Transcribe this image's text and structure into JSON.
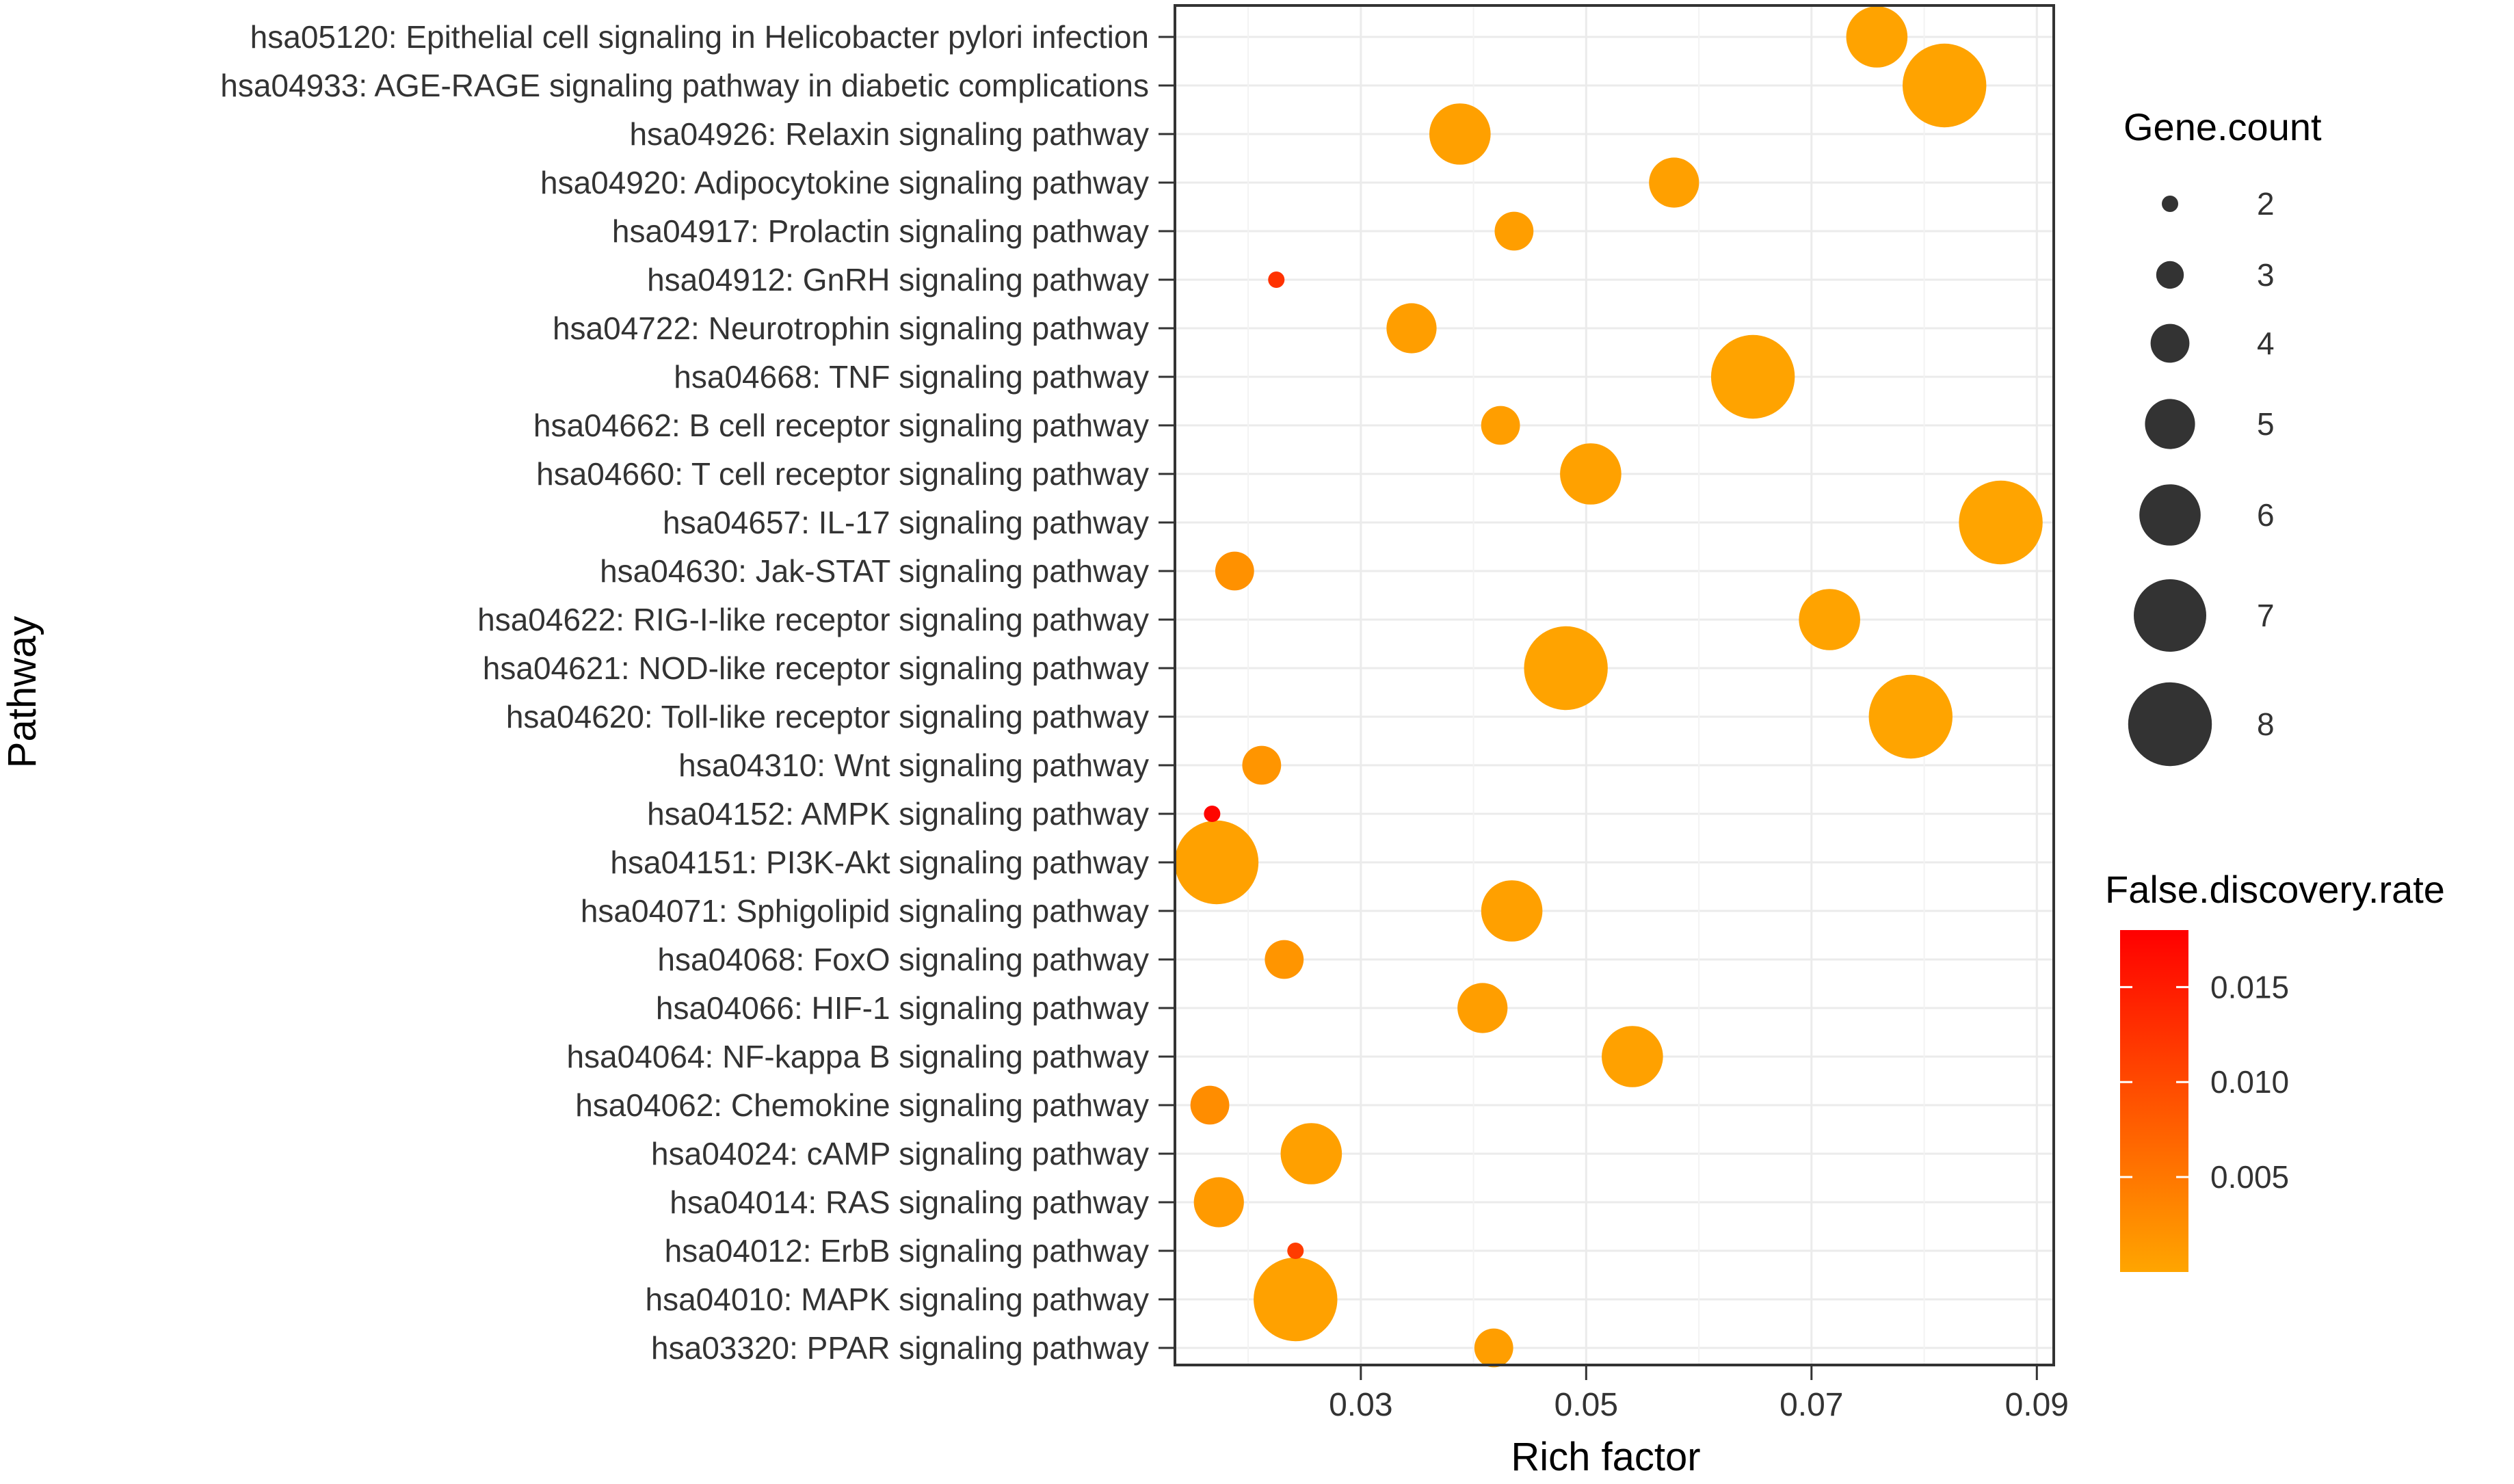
{
  "chart_data": {
    "type": "scatter",
    "subtype": "bubble",
    "xlabel": "Rich factor",
    "ylabel": "Pathway",
    "xlim": [
      0.0135,
      0.0915
    ],
    "xticks": [
      {
        "value": 0.03,
        "label": "0.03"
      },
      {
        "value": 0.05,
        "label": "0.05"
      },
      {
        "value": 0.07,
        "label": "0.07"
      },
      {
        "value": 0.09,
        "label": "0.09"
      }
    ],
    "grid": true,
    "points": [
      {
        "pathway": "hsa05120: Epithelial cell signaling in Helicobacter pylori infection",
        "rich_factor": 0.0758,
        "gene_count": 6,
        "fdr": 0.0002
      },
      {
        "pathway": "hsa04933: AGE-RAGE signaling pathway in diabetic complications",
        "rich_factor": 0.0818,
        "gene_count": 8,
        "fdr": 0.0002
      },
      {
        "pathway": "hsa04926: Relaxin signaling pathway",
        "rich_factor": 0.0388,
        "gene_count": 6,
        "fdr": 0.0006
      },
      {
        "pathway": "hsa04920: Adipocytokine signaling pathway",
        "rich_factor": 0.0578,
        "gene_count": 5,
        "fdr": 0.0006
      },
      {
        "pathway": "hsa04917: Prolactin signaling pathway",
        "rich_factor": 0.0436,
        "gene_count": 4,
        "fdr": 0.0008
      },
      {
        "pathway": "hsa04912: GnRH signaling pathway",
        "rich_factor": 0.0225,
        "gene_count": 2,
        "fdr": 0.0125
      },
      {
        "pathway": "hsa04722: Neurotrophin signaling pathway",
        "rich_factor": 0.0345,
        "gene_count": 5,
        "fdr": 0.0008
      },
      {
        "pathway": "hsa04668: TNF signaling pathway",
        "rich_factor": 0.0648,
        "gene_count": 8,
        "fdr": 0.0002
      },
      {
        "pathway": "hsa04662: B cell receptor signaling pathway",
        "rich_factor": 0.0424,
        "gene_count": 4,
        "fdr": 0.0008
      },
      {
        "pathway": "hsa04660: T cell receptor signaling pathway",
        "rich_factor": 0.0504,
        "gene_count": 6,
        "fdr": 0.0004
      },
      {
        "pathway": "hsa04657: IL-17 signaling pathway",
        "rich_factor": 0.0868,
        "gene_count": 8,
        "fdr": 0.0001
      },
      {
        "pathway": "hsa04630: Jak-STAT signaling pathway",
        "rich_factor": 0.0188,
        "gene_count": 4,
        "fdr": 0.0022
      },
      {
        "pathway": "hsa04622: RIG-I-like receptor signaling pathway",
        "rich_factor": 0.0716,
        "gene_count": 6,
        "fdr": 0.0002
      },
      {
        "pathway": "hsa04621: NOD-like receptor signaling pathway",
        "rich_factor": 0.0482,
        "gene_count": 8,
        "fdr": 0.0002
      },
      {
        "pathway": "hsa04620: Toll-like receptor signaling pathway",
        "rich_factor": 0.0788,
        "gene_count": 8,
        "fdr": 0.0001
      },
      {
        "pathway": "hsa04310: Wnt signaling pathway",
        "rich_factor": 0.0212,
        "gene_count": 4,
        "fdr": 0.0018
      },
      {
        "pathway": "hsa04152: AMPK signaling pathway",
        "rich_factor": 0.0168,
        "gene_count": 2,
        "fdr": 0.0175
      },
      {
        "pathway": "hsa04151: PI3K-Akt signaling pathway",
        "rich_factor": 0.0172,
        "gene_count": 8,
        "fdr": 0.0004
      },
      {
        "pathway": "hsa04071: Sphigolipid signaling pathway",
        "rich_factor": 0.0434,
        "gene_count": 6,
        "fdr": 0.0006
      },
      {
        "pathway": "hsa04068: FoxO signaling pathway",
        "rich_factor": 0.0232,
        "gene_count": 4,
        "fdr": 0.0018
      },
      {
        "pathway": "hsa04066: HIF-1 signaling pathway",
        "rich_factor": 0.0408,
        "gene_count": 5,
        "fdr": 0.0008
      },
      {
        "pathway": "hsa04064: NF-kappa B signaling pathway",
        "rich_factor": 0.0541,
        "gene_count": 6,
        "fdr": 0.0004
      },
      {
        "pathway": "hsa04062: Chemokine signaling pathway",
        "rich_factor": 0.0166,
        "gene_count": 4,
        "fdr": 0.0026
      },
      {
        "pathway": "hsa04024: cAMP signaling pathway",
        "rich_factor": 0.0256,
        "gene_count": 6,
        "fdr": 0.0006
      },
      {
        "pathway": "hsa04014: RAS signaling pathway",
        "rich_factor": 0.0174,
        "gene_count": 5,
        "fdr": 0.0012
      },
      {
        "pathway": "hsa04012: ErbB signaling pathway",
        "rich_factor": 0.0242,
        "gene_count": 2,
        "fdr": 0.0115
      },
      {
        "pathway": "hsa04010: MAPK signaling pathway",
        "rich_factor": 0.0242,
        "gene_count": 8,
        "fdr": 0.0004
      },
      {
        "pathway": "hsa03320: PPAR signaling pathway",
        "rich_factor": 0.0418,
        "gene_count": 4,
        "fdr": 0.0008
      }
    ],
    "size_legend": {
      "title": "Gene.count",
      "values": [
        2,
        3,
        4,
        5,
        6,
        7,
        8
      ]
    },
    "color_legend": {
      "title": "False.discovery.rate",
      "range": [
        0,
        0.018
      ],
      "ticks": [
        {
          "value": 0.015,
          "label": "0.015"
        },
        {
          "value": 0.01,
          "label": "0.010"
        },
        {
          "value": 0.005,
          "label": "0.005"
        }
      ],
      "low_color": "#FFA500",
      "high_color": "#FF0000"
    },
    "colors": {
      "panel_border": "#333333",
      "grid_major": "#EBEBEB",
      "grid_minor": "#F3F3F3",
      "size_legend_fill": "#333333"
    }
  }
}
